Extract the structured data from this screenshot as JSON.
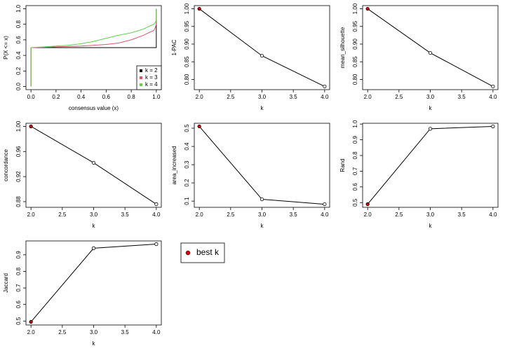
{
  "chart_data": [
    {
      "type": "ecdf",
      "xlabel": "consensus value (x)",
      "ylabel": "P(X <= x)",
      "x": [
        0,
        0,
        0.1,
        0.2,
        0.3,
        0.4,
        0.5,
        0.6,
        0.7,
        0.8,
        0.9,
        0.95,
        0.98,
        0.99,
        1.0,
        1.0
      ],
      "series": [
        {
          "name": "k = 2",
          "color": "#000000",
          "values": [
            0,
            0.5,
            0.5,
            0.5,
            0.5,
            0.5,
            0.5,
            0.5,
            0.5,
            0.5,
            0.5,
            0.5,
            0.5,
            0.5,
            0.5,
            1.0
          ]
        },
        {
          "name": "k = 3",
          "color": "#DF536B",
          "values": [
            0,
            0.5,
            0.505,
            0.51,
            0.515,
            0.52,
            0.53,
            0.54,
            0.56,
            0.6,
            0.66,
            0.7,
            0.72,
            0.75,
            0.8,
            1.0
          ]
        },
        {
          "name": "k = 4",
          "color": "#61D04F",
          "values": [
            0,
            0.5,
            0.51,
            0.52,
            0.53,
            0.55,
            0.58,
            0.62,
            0.66,
            0.69,
            0.74,
            0.78,
            0.8,
            0.82,
            0.85,
            1.0
          ]
        }
      ],
      "legend_position": "bottomright",
      "xlim": [
        -0.04,
        1.04
      ],
      "ylim": [
        -0.04,
        1.04
      ],
      "xticks": [
        {
          "value": 0,
          "label": "0.0"
        },
        0.2,
        0.4,
        0.6,
        0.8,
        {
          "value": 1,
          "label": "1.0"
        }
      ],
      "yticks": [
        {
          "value": 0,
          "label": "0.0"
        },
        0.2,
        0.4,
        0.6,
        0.8,
        {
          "value": 1,
          "label": "1.0"
        }
      ]
    },
    {
      "type": "line",
      "xlabel": "k",
      "ylabel": "1-PAC",
      "x": [
        2,
        3,
        4
      ],
      "values": [
        1.0,
        0.867,
        0.78
      ],
      "marker_colors": [
        "#dd0000",
        "#ffffff",
        "#ffffff"
      ],
      "xlim": [
        1.92,
        4.08
      ],
      "ylim": [
        0.771,
        1.009
      ],
      "xticks": [
        {
          "value": 2,
          "label": "2.0"
        },
        2.5,
        {
          "value": 3,
          "label": "3.0"
        },
        3.5,
        {
          "value": 4,
          "label": "4.0"
        }
      ],
      "yticks": [
        {
          "value": 0.8,
          "label": "0.80"
        },
        0.85,
        {
          "value": 0.9,
          "label": "0.90"
        },
        0.95,
        {
          "value": 1,
          "label": "1.00"
        }
      ]
    },
    {
      "type": "line",
      "xlabel": "k",
      "ylabel": "mean_silhouette",
      "x": [
        2,
        3,
        4
      ],
      "values": [
        1.0,
        0.875,
        0.78
      ],
      "marker_colors": [
        "#dd0000",
        "#ffffff",
        "#ffffff"
      ],
      "xlim": [
        1.92,
        4.08
      ],
      "ylim": [
        0.771,
        1.009
      ],
      "xticks": [
        {
          "value": 2,
          "label": "2.0"
        },
        2.5,
        {
          "value": 3,
          "label": "3.0"
        },
        3.5,
        {
          "value": 4,
          "label": "4.0"
        }
      ],
      "yticks": [
        {
          "value": 0.8,
          "label": "0.80"
        },
        0.85,
        {
          "value": 0.9,
          "label": "0.90"
        },
        0.95,
        {
          "value": 1,
          "label": "1.00"
        }
      ]
    },
    {
      "type": "line",
      "xlabel": "k",
      "ylabel": "concordance",
      "x": [
        2,
        3,
        4
      ],
      "values": [
        1.0,
        0.942,
        0.876
      ],
      "marker_colors": [
        "#dd0000",
        "#ffffff",
        "#ffffff"
      ],
      "xlim": [
        1.92,
        4.08
      ],
      "ylim": [
        0.871,
        1.005
      ],
      "xticks": [
        {
          "value": 2,
          "label": "2.0"
        },
        2.5,
        {
          "value": 3,
          "label": "3.0"
        },
        3.5,
        {
          "value": 4,
          "label": "4.0"
        }
      ],
      "yticks": [
        0.88,
        0.92,
        0.96,
        {
          "value": 1,
          "label": "1.00"
        }
      ]
    },
    {
      "type": "line",
      "xlabel": "k",
      "ylabel": "area_increased",
      "x": [
        2,
        3,
        4
      ],
      "values": [
        0.51,
        0.11,
        0.083
      ],
      "marker_colors": [
        "#dd0000",
        "#ffffff",
        "#ffffff"
      ],
      "xlim": [
        1.92,
        4.08
      ],
      "ylim": [
        0.066,
        0.527
      ],
      "xticks": [
        {
          "value": 2,
          "label": "2.0"
        },
        2.5,
        {
          "value": 3,
          "label": "3.0"
        },
        3.5,
        {
          "value": 4,
          "label": "4.0"
        }
      ],
      "yticks": [
        0.1,
        0.2,
        0.3,
        0.4,
        0.5
      ]
    },
    {
      "type": "line",
      "xlabel": "k",
      "ylabel": "Rand",
      "x": [
        2,
        3,
        4
      ],
      "values": [
        0.49,
        0.97,
        0.985
      ],
      "marker_colors": [
        "#dd0000",
        "#ffffff",
        "#ffffff"
      ],
      "xlim": [
        1.92,
        4.08
      ],
      "ylim": [
        0.47,
        1.005
      ],
      "xticks": [
        {
          "value": 2,
          "label": "2.0"
        },
        2.5,
        {
          "value": 3,
          "label": "3.0"
        },
        3.5,
        {
          "value": 4,
          "label": "4.0"
        }
      ],
      "yticks": [
        0.5,
        0.6,
        0.7,
        0.8,
        0.9,
        {
          "value": 1,
          "label": "1.0"
        }
      ]
    },
    {
      "type": "line",
      "xlabel": "k",
      "ylabel": "Jaccard",
      "x": [
        2,
        3,
        4
      ],
      "values": [
        0.495,
        0.94,
        0.965
      ],
      "marker_colors": [
        "#dd0000",
        "#ffffff",
        "#ffffff"
      ],
      "xlim": [
        1.92,
        4.08
      ],
      "ylim": [
        0.476,
        0.984
      ],
      "xticks": [
        {
          "value": 2,
          "label": "2.0"
        },
        2.5,
        {
          "value": 3,
          "label": "3.0"
        },
        3.5,
        {
          "value": 4,
          "label": "4.0"
        }
      ],
      "yticks": [
        0.5,
        0.6,
        0.7,
        0.8,
        0.9
      ]
    }
  ],
  "legend": {
    "label": "best k",
    "color": "#dd0000"
  }
}
